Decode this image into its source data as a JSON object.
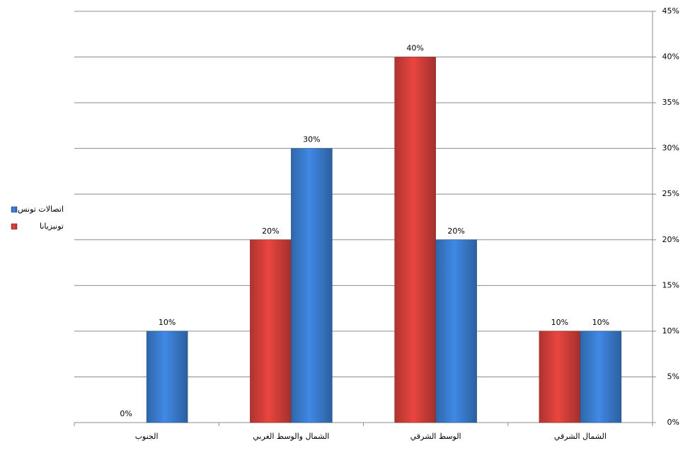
{
  "chart_data": {
    "type": "bar",
    "categories": [
      "الجنوب",
      "الشمال والوسط الغربي",
      "الوسط الشرقي",
      "الشمال الشرقي"
    ],
    "series": [
      {
        "name": "تونيزيانا",
        "color": "#d9403b",
        "values": [
          0,
          20,
          40,
          10
        ],
        "value_labels": [
          "0%",
          "20%",
          "40%",
          "10%"
        ]
      },
      {
        "name": "اتصالات تونس",
        "color": "#3b7fd4",
        "values": [
          10,
          30,
          20,
          10
        ],
        "value_labels": [
          "10%",
          "30%",
          "20%",
          "10%"
        ]
      }
    ],
    "ylim": [
      0,
      45
    ],
    "yticks": [
      {
        "value": 0,
        "label": "0%"
      },
      {
        "value": 5,
        "label": "5%"
      },
      {
        "value": 10,
        "label": "10%"
      },
      {
        "value": 15,
        "label": "15%"
      },
      {
        "value": 20,
        "label": "20%"
      },
      {
        "value": 25,
        "label": "25%"
      },
      {
        "value": 30,
        "label": "30%"
      },
      {
        "value": 35,
        "label": "35%"
      },
      {
        "value": 40,
        "label": "40%"
      },
      {
        "value": 45,
        "label": "45%"
      }
    ],
    "grid": true,
    "legend": "left"
  }
}
